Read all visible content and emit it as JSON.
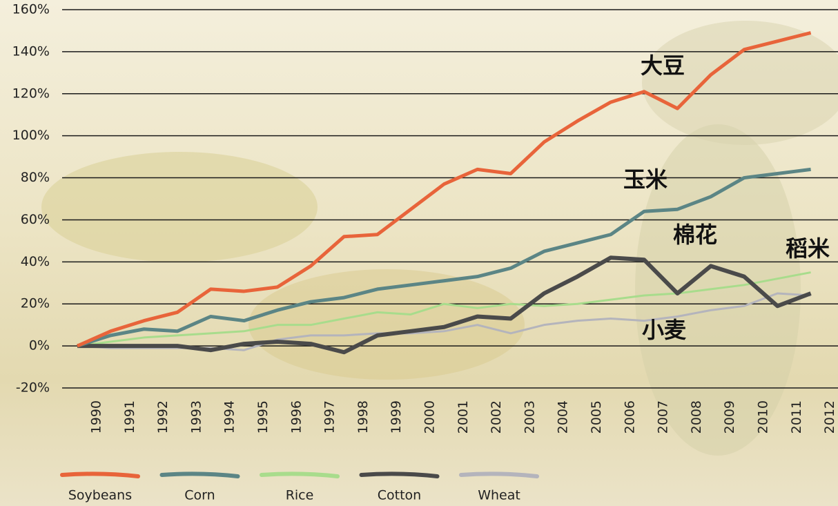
{
  "chart_data": {
    "type": "line",
    "categories": [
      "1990",
      "1991",
      "1992",
      "1993",
      "1994",
      "1995",
      "1996",
      "1997",
      "1998",
      "1999",
      "2000",
      "2001",
      "2002",
      "2003",
      "2004",
      "2005",
      "2006",
      "2007",
      "2008",
      "2009",
      "2010",
      "2011",
      "2012"
    ],
    "series": [
      {
        "name": "Soybeans",
        "annotation": "大豆",
        "color": "#e8643a",
        "values": [
          0,
          7,
          12,
          16,
          27,
          26,
          28,
          38,
          52,
          53,
          65,
          77,
          84,
          82,
          97,
          107,
          116,
          121,
          113,
          129,
          141,
          145,
          149
        ]
      },
      {
        "name": "Corn",
        "annotation": "玉米",
        "color": "#5b8585",
        "values": [
          0,
          5,
          8,
          7,
          14,
          12,
          17,
          21,
          23,
          27,
          29,
          31,
          33,
          37,
          45,
          49,
          53,
          64,
          65,
          71,
          80,
          82,
          84
        ]
      },
      {
        "name": "Rice",
        "annotation": "稻米",
        "color": "#a8dc8c",
        "values": [
          0,
          2,
          4,
          5,
          6,
          7,
          10,
          10,
          13,
          16,
          15,
          20,
          18,
          20,
          19,
          20,
          22,
          24,
          25,
          27,
          29,
          32,
          35
        ]
      },
      {
        "name": "Cotton",
        "annotation": "棉花",
        "color": "#4a4a4a",
        "values": [
          0,
          0,
          0,
          0,
          -2,
          1,
          2,
          1,
          -3,
          5,
          7,
          9,
          14,
          13,
          25,
          33,
          42,
          41,
          25,
          38,
          33,
          19,
          25
        ]
      },
      {
        "name": "Wheat",
        "annotation": "小麦",
        "color": "#b4b4bc",
        "values": [
          0,
          -1,
          -1,
          -1,
          -1,
          -2,
          3,
          5,
          5,
          6,
          6,
          7,
          10,
          6,
          10,
          12,
          13,
          12,
          14,
          17,
          19,
          25,
          24
        ]
      }
    ],
    "ylim": [
      -20,
      160
    ],
    "yticks": [
      {
        "value": -20,
        "label": "-20%"
      },
      {
        "value": 0,
        "label": "0%"
      },
      {
        "value": 20,
        "label": "20%"
      },
      {
        "value": 40,
        "label": "40%"
      },
      {
        "value": 60,
        "label": "60%"
      },
      {
        "value": 80,
        "label": "80%"
      },
      {
        "value": 100,
        "label": "100%"
      },
      {
        "value": 120,
        "label": "120%"
      },
      {
        "value": 140,
        "label": "140%"
      },
      {
        "value": 160,
        "label": "160%"
      }
    ],
    "grid": true,
    "legend": "bottom"
  }
}
